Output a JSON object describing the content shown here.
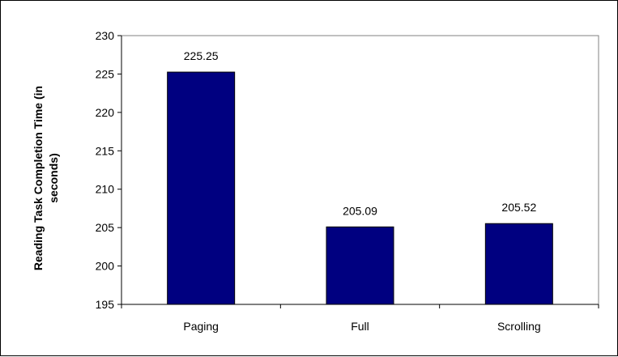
{
  "chart_data": {
    "type": "bar",
    "title": "",
    "xlabel": "",
    "ylabel": "Reading Task Completion Time (in seconds)",
    "ylabel_lines": [
      "Reading Task Completion Time (in",
      "seconds)"
    ],
    "categories": [
      "Paging",
      "Full",
      "Scrolling"
    ],
    "values": [
      225.25,
      205.09,
      205.52
    ],
    "data_labels": [
      "225.25",
      "205.09",
      "205.52"
    ],
    "ylim": [
      195,
      230
    ],
    "yticks": [
      195,
      200,
      205,
      210,
      215,
      220,
      225,
      230
    ],
    "grid": false,
    "legend": "none",
    "bar_color": "#000080"
  }
}
